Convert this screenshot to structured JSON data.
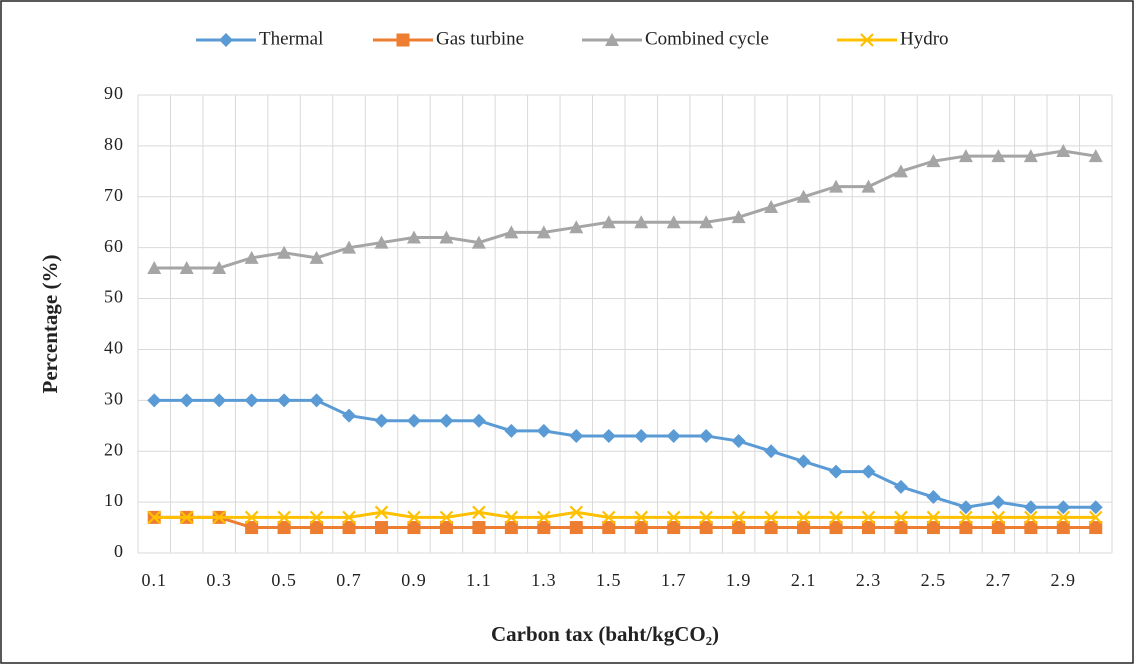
{
  "chart_data": {
    "type": "line",
    "x_label": "Carbon tax (baht/kgCO₂)",
    "y_label": "Percentage (%)",
    "categories": [
      "0.1",
      null,
      "0.3",
      null,
      "0.5",
      null,
      "0.7",
      null,
      "0.9",
      null,
      "1.1",
      null,
      "1.3",
      null,
      "1.5",
      null,
      "1.7",
      null,
      "1.9",
      null,
      "2.1",
      null,
      "2.3",
      null,
      "2.5",
      null,
      "2.7",
      null,
      "2.9",
      null
    ],
    "series": [
      {
        "name": "Thermal",
        "color": "#5b9bd5",
        "marker": "diamond",
        "values": [
          30,
          30,
          30,
          30,
          30,
          30,
          27,
          26,
          26,
          26,
          26,
          24,
          24,
          23,
          23,
          23,
          23,
          23,
          22,
          20,
          18,
          16,
          16,
          13,
          11,
          9,
          10,
          9,
          9,
          9
        ]
      },
      {
        "name": "Gas turbine",
        "color": "#ed7d31",
        "marker": "square",
        "values": [
          7,
          7,
          7,
          5,
          5,
          5,
          5,
          5,
          5,
          5,
          5,
          5,
          5,
          5,
          5,
          5,
          5,
          5,
          5,
          5,
          5,
          5,
          5,
          5,
          5,
          5,
          5,
          5,
          5,
          5
        ]
      },
      {
        "name": "Combined cycle",
        "color": "#a5a5a5",
        "marker": "triangle",
        "values": [
          56,
          56,
          56,
          58,
          59,
          58,
          60,
          61,
          62,
          62,
          61,
          63,
          63,
          64,
          65,
          65,
          65,
          65,
          66,
          68,
          70,
          72,
          72,
          75,
          77,
          78,
          78,
          78,
          79,
          78
        ]
      },
      {
        "name": "Hydro",
        "color": "#ffc000",
        "marker": "x",
        "values": [
          7,
          7,
          7,
          7,
          7,
          7,
          7,
          8,
          7,
          7,
          8,
          7,
          7,
          8,
          7,
          7,
          7,
          7,
          7,
          7,
          7,
          7,
          7,
          7,
          7,
          7,
          7,
          7,
          7,
          7
        ]
      }
    ],
    "ylim": [
      0,
      90
    ],
    "yticks": [
      0,
      10,
      20,
      30,
      40,
      50,
      60,
      70,
      80,
      90
    ],
    "grid": true,
    "legend": "top"
  }
}
